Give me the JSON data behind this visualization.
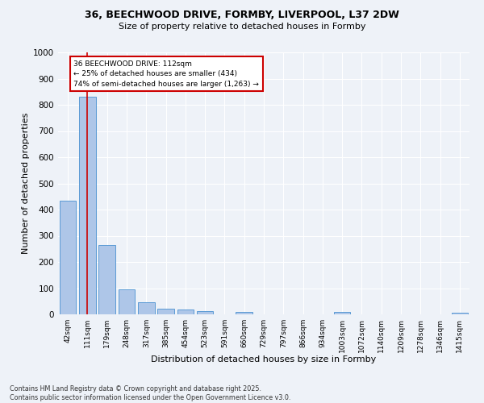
{
  "title_line1": "36, BEECHWOOD DRIVE, FORMBY, LIVERPOOL, L37 2DW",
  "title_line2": "Size of property relative to detached houses in Formby",
  "xlabel": "Distribution of detached houses by size in Formby",
  "ylabel": "Number of detached properties",
  "categories": [
    "42sqm",
    "111sqm",
    "179sqm",
    "248sqm",
    "317sqm",
    "385sqm",
    "454sqm",
    "523sqm",
    "591sqm",
    "660sqm",
    "729sqm",
    "797sqm",
    "866sqm",
    "934sqm",
    "1003sqm",
    "1072sqm",
    "1140sqm",
    "1209sqm",
    "1278sqm",
    "1346sqm",
    "1415sqm"
  ],
  "values": [
    434,
    830,
    265,
    95,
    45,
    22,
    17,
    13,
    0,
    10,
    0,
    0,
    0,
    0,
    10,
    0,
    0,
    0,
    0,
    0,
    5
  ],
  "bar_color": "#aec6e8",
  "bar_edge_color": "#5b9bd5",
  "property_line_x": 1,
  "annotation_text": "36 BEECHWOOD DRIVE: 112sqm\n← 25% of detached houses are smaller (434)\n74% of semi-detached houses are larger (1,263) →",
  "annotation_box_color": "#ffffff",
  "annotation_box_edge_color": "#cc0000",
  "vline_color": "#cc0000",
  "ylim": [
    0,
    1000
  ],
  "yticks": [
    0,
    100,
    200,
    300,
    400,
    500,
    600,
    700,
    800,
    900,
    1000
  ],
  "background_color": "#eef2f8",
  "grid_color": "#ffffff",
  "footer_line1": "Contains HM Land Registry data © Crown copyright and database right 2025.",
  "footer_line2": "Contains public sector information licensed under the Open Government Licence v3.0."
}
